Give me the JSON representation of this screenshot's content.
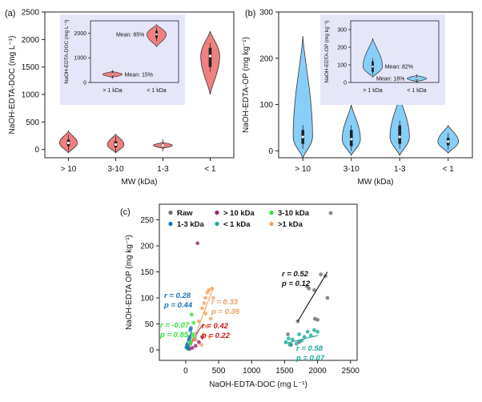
{
  "panel_labels": {
    "a": "(a)",
    "b": "(b)",
    "c": "(c)"
  },
  "colors": {
    "violin_a": "#f08080",
    "violin_b": "#87cefa",
    "inset_bg": "#e6e6fa",
    "raw": "#6d6d6d",
    "gt10": "#a0216c",
    "kda3_10": "#32e33a",
    "kda1_3": "#1a73b8",
    "lt1": "#1aaa99",
    "gt1": "#f4a460",
    "r_raw": "#111111",
    "r_gt10": "#c41a1a",
    "r_3_10": "#32e33a",
    "r_1_3": "#1a73b8",
    "r_lt1": "#1aaa99",
    "r_gt1": "#e8a060"
  },
  "chart_data": [
    {
      "id": "a",
      "type": "violin",
      "title": "",
      "xlabel": "MW (kDa)",
      "ylabel": "NaOH-EDTA-DOC (mg L⁻¹)",
      "categories": [
        "> 10",
        "3-10",
        "1-3",
        "< 1"
      ],
      "ylim": [
        -150,
        2500
      ],
      "yticks": [
        0,
        500,
        1000,
        1500,
        2000,
        2500
      ],
      "violins": [
        {
          "category": "> 10",
          "min": -60,
          "max": 330,
          "q1": 60,
          "median": 120,
          "q3": 180,
          "width_scale": 0.75
        },
        {
          "category": "3-10",
          "min": -60,
          "max": 280,
          "q1": 40,
          "median": 90,
          "q3": 150,
          "width_scale": 0.7
        },
        {
          "category": "1-3",
          "min": 20,
          "max": 130,
          "q1": 55,
          "median": 75,
          "q3": 95,
          "width_scale": 0.8
        },
        {
          "category": "< 1",
          "min": 1000,
          "max": 2150,
          "q1": 1500,
          "median": 1700,
          "q3": 1850,
          "width_scale": 0.8
        }
      ],
      "inset": {
        "ylabel": "NaOH-EDTA-DOC (mg L⁻¹)",
        "categories": [
          "> 1 kDa",
          "< 1 kDa"
        ],
        "ylim": [
          0,
          2500
        ],
        "yticks": [
          0,
          1000,
          2000
        ],
        "violins": [
          {
            "category": "> 1 kDa",
            "min": 200,
            "max": 450,
            "q1": 280,
            "median": 330,
            "q3": 380,
            "mean_label": "Mean: 15%"
          },
          {
            "category": "< 1 kDa",
            "min": 1450,
            "max": 2350,
            "q1": 1800,
            "median": 1950,
            "q3": 2100,
            "mean_label": "Mean: 85%"
          }
        ]
      }
    },
    {
      "id": "b",
      "type": "violin",
      "title": "",
      "xlabel": "MW (kDa)",
      "ylabel": "NaOH-EDTA-OP (mg kg⁻¹)",
      "categories": [
        "> 10",
        "3-10",
        "1-3",
        "< 1"
      ],
      "ylim": [
        -15,
        300
      ],
      "yticks": [
        0,
        100,
        200,
        300
      ],
      "violins": [
        {
          "category": "> 10",
          "min": -15,
          "max": 248,
          "q1": 15,
          "median": 30,
          "q3": 45,
          "width_scale": 0.8
        },
        {
          "category": "3-10",
          "min": -10,
          "max": 100,
          "q1": 10,
          "median": 25,
          "q3": 45,
          "width_scale": 0.75
        },
        {
          "category": "1-3",
          "min": -10,
          "max": 120,
          "q1": 15,
          "median": 30,
          "q3": 55,
          "width_scale": 0.8
        },
        {
          "category": "< 1",
          "min": -5,
          "max": 55,
          "q1": 12,
          "median": 20,
          "q3": 28,
          "width_scale": 0.85
        }
      ],
      "inset": {
        "ylabel": "NaOH-EDTA-OP (mg kg⁻¹)",
        "categories": [
          "> 1 kDa",
          "< 1 kDa"
        ],
        "ylim": [
          0,
          350
        ],
        "yticks": [
          0,
          100,
          200,
          300
        ],
        "violins": [
          {
            "category": "> 1 kDa",
            "min": 30,
            "max": 250,
            "q1": 60,
            "median": 90,
            "q3": 120,
            "mean_label": "Mean: 82%"
          },
          {
            "category": "< 1 kDa",
            "min": 5,
            "max": 40,
            "q1": 15,
            "median": 22,
            "q3": 28,
            "mean_label": "Mean: 18%"
          }
        ]
      }
    },
    {
      "id": "c",
      "type": "scatter",
      "title": "",
      "xlabel": "NaOH-EDTA-DOC (mg L⁻¹)",
      "ylabel": "NaOH-EDTA OP (mg kg⁻¹)",
      "xlim": [
        -400,
        2600
      ],
      "ylim": [
        -20,
        280
      ],
      "xticks": [
        0,
        500,
        1000,
        1500,
        2000,
        2500
      ],
      "yticks": [
        0,
        50,
        100,
        150,
        200,
        250
      ],
      "legend": {
        "placement": "top-left",
        "entries": [
          {
            "series": "raw",
            "label": "Raw"
          },
          {
            "series": "gt10",
            "label": "> 10 kDa"
          },
          {
            "series": "kda3_10",
            "label": "3-10 kDa"
          },
          {
            "series": "kda1_3",
            "label": "1-3 kDa"
          },
          {
            "series": "lt1",
            "label": "< 1 kDa"
          },
          {
            "series": "gt1",
            "label": ">1 kDa"
          }
        ]
      },
      "series": [
        {
          "key": "raw",
          "name": "Raw",
          "points": [
            [
              1700,
              55
            ],
            [
              1840,
              122
            ],
            [
              1870,
              118
            ],
            [
              1950,
              115
            ],
            [
              1960,
              60
            ],
            [
              2000,
              58
            ],
            [
              2050,
              145
            ],
            [
              2120,
              142
            ],
            [
              2150,
              100
            ],
            [
              2200,
              263
            ],
            [
              1550,
              30
            ],
            [
              1600,
              10
            ],
            [
              1720,
              15
            ]
          ],
          "fit": [
            [
              1700,
              55
            ],
            [
              2150,
              150
            ]
          ]
        },
        {
          "key": "gt10",
          "name": "> 10 kDa",
          "points": [
            [
              60,
              2
            ],
            [
              100,
              4
            ],
            [
              150,
              8
            ],
            [
              200,
              15
            ],
            [
              250,
              25
            ],
            [
              180,
              205
            ],
            [
              130,
              20
            ],
            [
              70,
              12
            ]
          ],
          "fit": [
            [
              40,
              5
            ],
            [
              260,
              50
            ]
          ]
        },
        {
          "key": "kda3_10",
          "name": "3-10 kDa",
          "points": [
            [
              20,
              5
            ],
            [
              40,
              8
            ],
            [
              60,
              12
            ],
            [
              80,
              15
            ],
            [
              100,
              30
            ],
            [
              120,
              52
            ],
            [
              140,
              25
            ],
            [
              30,
              2
            ],
            [
              90,
              68
            ]
          ],
          "fit": [
            [
              10,
              5
            ],
            [
              150,
              35
            ]
          ]
        },
        {
          "key": "kda1_3",
          "name": "1-3 kDa",
          "points": [
            [
              10,
              5
            ],
            [
              20,
              10
            ],
            [
              30,
              5
            ],
            [
              50,
              20
            ],
            [
              70,
              38
            ],
            [
              40,
              3
            ],
            [
              60,
              25
            ],
            [
              80,
              42
            ]
          ],
          "fit": [
            [
              5,
              10
            ],
            [
              90,
              35
            ]
          ]
        },
        {
          "key": "lt1",
          "name": "< 1 kDa",
          "points": [
            [
              1520,
              15
            ],
            [
              1580,
              10
            ],
            [
              1620,
              20
            ],
            [
              1680,
              12
            ],
            [
              1720,
              30
            ],
            [
              1800,
              25
            ],
            [
              1850,
              35
            ],
            [
              1900,
              28
            ],
            [
              1950,
              38
            ],
            [
              2000,
              35
            ],
            [
              1560,
              22
            ],
            [
              1760,
              18
            ]
          ],
          "fit": [
            [
              1500,
              12
            ],
            [
              2010,
              28
            ]
          ]
        },
        {
          "key": "gt1",
          "name": ">1 kDa",
          "points": [
            [
              150,
              20
            ],
            [
              200,
              55
            ],
            [
              250,
              80
            ],
            [
              280,
              90
            ],
            [
              300,
              100
            ],
            [
              330,
              110
            ],
            [
              350,
              115
            ],
            [
              400,
              118
            ],
            [
              380,
              60
            ],
            [
              320,
              45
            ],
            [
              270,
              30
            ],
            [
              360,
              25
            ],
            [
              420,
              100
            ],
            [
              300,
              70
            ],
            [
              240,
              10
            ]
          ],
          "fit": [
            [
              90,
              10
            ],
            [
              420,
              120
            ]
          ]
        }
      ],
      "annotations": [
        {
          "id": "raw",
          "r": "r = 0.52",
          "p": "p = 0.12"
        },
        {
          "id": "gt10",
          "r": "r = 0.42",
          "p": "p = 0.22"
        },
        {
          "id": "kda3_10",
          "r": "r = -0.07",
          "p": "p = 0.85"
        },
        {
          "id": "kda1_3",
          "r": "r = 0.28",
          "p": "p = 0.44"
        },
        {
          "id": "lt1",
          "r": "r = 0.58",
          "p": "p = 0.07"
        },
        {
          "id": "gt1",
          "r": "r = 0.33",
          "p": "p = 0.36"
        }
      ]
    }
  ]
}
